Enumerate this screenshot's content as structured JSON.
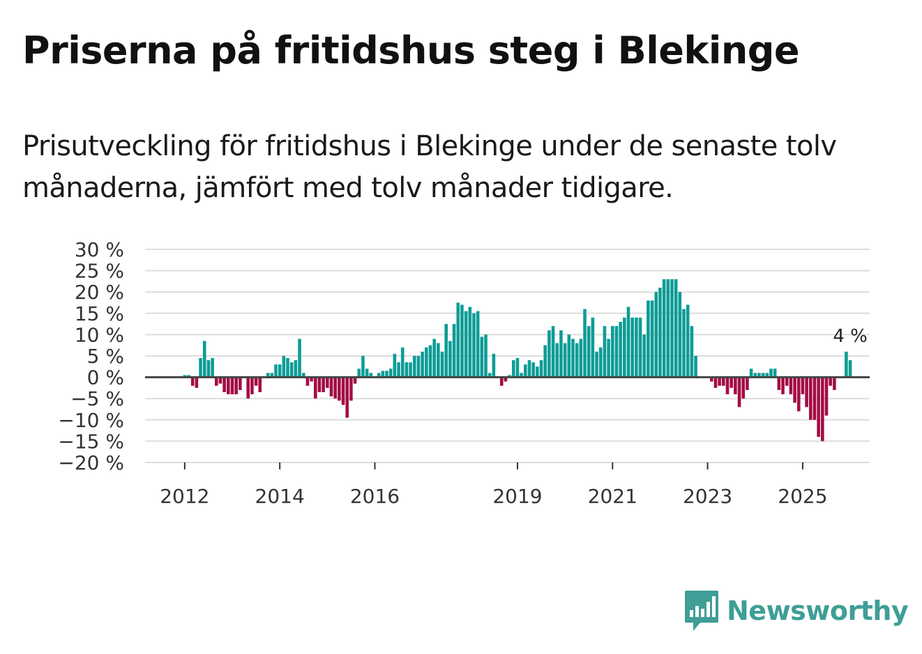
{
  "title": "Priserna på fritidshus steg i Blekinge",
  "subtitle": "Prisutveckling för fritidshus i Blekinge under de senaste tolv månaderna, jämfört med tolv månader tidigare.",
  "brand": {
    "name": "Newsworthy",
    "color": "#3f9e96"
  },
  "colors": {
    "positive": "#0e9c96",
    "negative": "#a30d45",
    "grid": "#dddddd",
    "zero_line": "#444444"
  },
  "chart_data": {
    "type": "bar",
    "start_month": "2011-10",
    "y_ticks": [
      30,
      25,
      20,
      15,
      10,
      5,
      0,
      -5,
      -10,
      -15,
      -20
    ],
    "y_tick_labels": [
      "30 %",
      "25 %",
      "20 %",
      "15 %",
      "10 %",
      "5 %",
      "0 %",
      "−5 %",
      "−10 %",
      "−15 %",
      "−20 %"
    ],
    "ylim": [
      -20,
      30
    ],
    "x_ticks": [
      "2012",
      "2014",
      "2016",
      "2019",
      "2021",
      "2023",
      "2025"
    ],
    "annotation": "4 %",
    "values": [
      null,
      null,
      null,
      0.5,
      0.5,
      -2,
      -2.5,
      4.5,
      8.5,
      4,
      4.5,
      -2,
      -1.5,
      -3.5,
      -4,
      -4,
      -4,
      -3,
      null,
      -5,
      -4,
      -2,
      -3.5,
      null,
      1,
      1,
      3,
      3,
      5,
      4.5,
      3.5,
      4,
      9,
      1,
      -2,
      -1,
      -5,
      -3.5,
      -3.5,
      -2.5,
      -4.5,
      -5,
      -5.5,
      -6.5,
      -9.5,
      -5.5,
      -1.5,
      2,
      5,
      2,
      1,
      0,
      1,
      1.5,
      1.5,
      2,
      5.5,
      3.5,
      7,
      3.5,
      3.5,
      5,
      5,
      6,
      7,
      7.5,
      9,
      8,
      6,
      12.5,
      8.5,
      12.5,
      17.5,
      17,
      15.5,
      16.5,
      15,
      15.5,
      9.5,
      10,
      1,
      5.5,
      null,
      -2,
      -1,
      0.5,
      4,
      4.5,
      1,
      3,
      4,
      3.5,
      2.5,
      4,
      7.5,
      11,
      12,
      8,
      11,
      8,
      10,
      9,
      8,
      9,
      16,
      12,
      14,
      6,
      7,
      12,
      9,
      12,
      12,
      13,
      14,
      16.5,
      14,
      14,
      14,
      10,
      18,
      18,
      20,
      21,
      23,
      23,
      23,
      23,
      20,
      16,
      17,
      12,
      5,
      null,
      null,
      null,
      -1,
      -2.5,
      -2,
      -2,
      -4,
      -2.5,
      -4,
      -7,
      -5,
      -3,
      2,
      1,
      1,
      1,
      1,
      2,
      2,
      -3,
      -4,
      -2,
      -4,
      -6,
      -8,
      -4,
      -7,
      -10,
      -10,
      -14,
      -15,
      -9,
      -2,
      -3,
      null,
      null,
      6,
      4
    ]
  }
}
